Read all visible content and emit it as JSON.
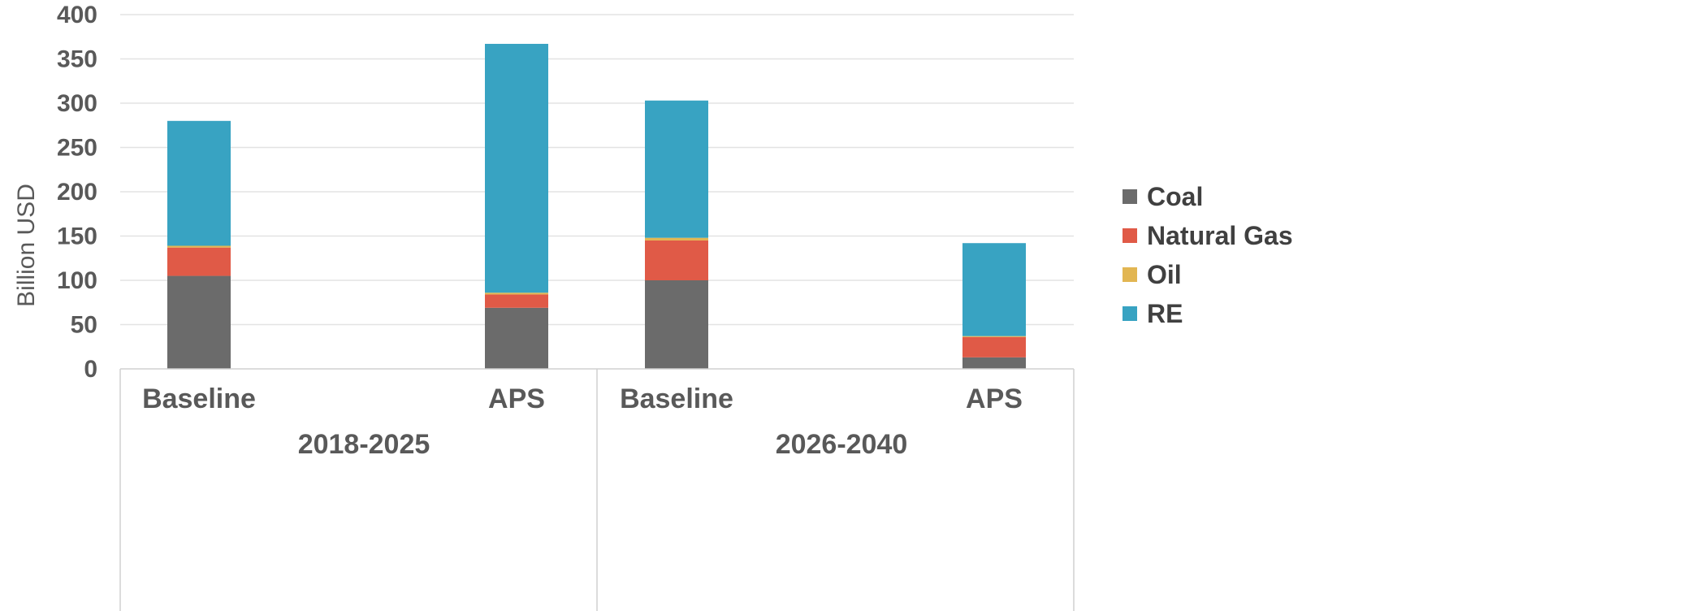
{
  "chart_data": {
    "type": "bar",
    "stacked": true,
    "ylabel": "Billion USD",
    "ylim": [
      0,
      400
    ],
    "yticks": [
      "0",
      "50",
      "100",
      "150",
      "200",
      "250",
      "300",
      "350",
      "400"
    ],
    "grid": true,
    "legend_position": "right",
    "groups": [
      {
        "label": "2018-2025",
        "categories": [
          "Baseline",
          "APS"
        ]
      },
      {
        "label": "2026-2040",
        "categories": [
          "Baseline",
          "APS"
        ]
      }
    ],
    "categories": [
      "Baseline",
      "APS",
      "Baseline",
      "APS"
    ],
    "series": [
      {
        "name": "Coal",
        "color": "#6b6b6b",
        "values": [
          105,
          69,
          100,
          13
        ]
      },
      {
        "name": "Natural Gas",
        "color": "#e05a47",
        "values": [
          32,
          15,
          45,
          23
        ]
      },
      {
        "name": "Oil",
        "color": "#e2b652",
        "values": [
          2,
          2,
          3,
          1
        ]
      },
      {
        "name": "RE",
        "color": "#38a3c2",
        "values": [
          141,
          281,
          155,
          105
        ]
      }
    ]
  }
}
